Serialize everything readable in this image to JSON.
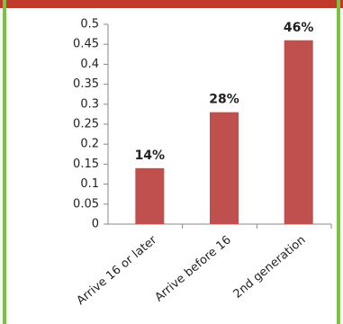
{
  "chart_data": {
    "type": "bar",
    "categories": [
      "Arrive 16 or later",
      "Arrive before 16",
      "2nd generation"
    ],
    "values": [
      0.14,
      0.28,
      0.46
    ],
    "value_labels": [
      "14%",
      "28%",
      "46%"
    ],
    "color": "#c0504d",
    "ylim": [
      0,
      0.5
    ],
    "yticks": [
      0,
      0.05,
      0.1,
      0.15,
      0.2,
      0.25,
      0.3,
      0.35,
      0.4,
      0.45,
      0.5
    ],
    "grid": false
  }
}
